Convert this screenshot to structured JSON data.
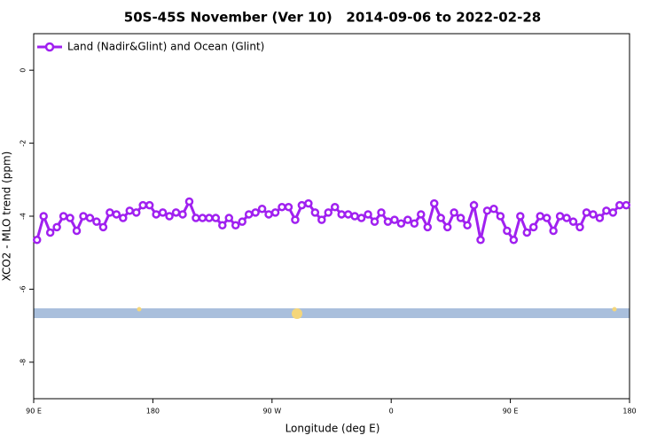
{
  "chart_data": {
    "type": "line",
    "title": "50S-45S November (Ver 10)   2014-09-06 to 2022-02-28",
    "x_label": "Longitude (deg E)",
    "y_label": "XCO2 - MLO trend (ppm)",
    "x": [
      92.5,
      97.5,
      102.5,
      107.5,
      112.5,
      117.5,
      122.5,
      127.5,
      132.5,
      137.5,
      142.5,
      147.5,
      152.5,
      157.5,
      162.5,
      167.5,
      172.5,
      177.5,
      182.5,
      187.5,
      192.5,
      197.5,
      202.5,
      207.5,
      212.5,
      217.5,
      222.5,
      227.5,
      232.5,
      237.5,
      242.5,
      247.5,
      252.5,
      257.5,
      262.5,
      267.5,
      272.5,
      277.5,
      282.5,
      287.5,
      292.5,
      297.5,
      302.5,
      307.5,
      312.5,
      317.5,
      322.5,
      327.5,
      332.5,
      337.5,
      342.5,
      347.5,
      352.5,
      357.5,
      362.5,
      367.5,
      372.5,
      377.5,
      382.5,
      387.5,
      392.5,
      397.5,
      402.5,
      407.5,
      412.5,
      417.5,
      422.5,
      427.5,
      432.5,
      437.5,
      442.5,
      447.5,
      452.5,
      457.5,
      462.5,
      467.5,
      472.5,
      477.5,
      482.5,
      487.5,
      492.5,
      497.5,
      502.5,
      507.5,
      512.5,
      517.5,
      522.5,
      527.5,
      532.5,
      537.5
    ],
    "series": [
      {
        "name": "Land (Nadir&Glint) and Ocean (Glint)",
        "color": "#a020f0",
        "values": [
          -4.65,
          -4.0,
          -4.45,
          -4.3,
          -4.0,
          -4.05,
          -4.4,
          -4.0,
          -4.05,
          -4.15,
          -4.3,
          -3.9,
          -3.95,
          -4.05,
          -3.85,
          -3.9,
          -3.7,
          -3.7,
          -3.95,
          -3.9,
          -4.0,
          -3.9,
          -3.95,
          -3.6,
          -4.05,
          -4.05,
          -4.05,
          -4.05,
          -4.25,
          -4.05,
          -4.25,
          -4.15,
          -3.95,
          -3.9,
          -3.8,
          -3.95,
          -3.9,
          -3.75,
          -3.75,
          -4.1,
          -3.7,
          -3.65,
          -3.9,
          -4.1,
          -3.9,
          -3.75,
          -3.95,
          -3.95,
          -4.0,
          -4.05,
          -3.95,
          -4.15,
          -3.9,
          -4.15,
          -4.1,
          -4.2,
          -4.1,
          -4.2,
          -3.95,
          -4.3,
          -3.65,
          -4.05,
          -4.3,
          -3.9,
          -4.05,
          -4.25,
          -3.7,
          -4.65,
          -3.85,
          -3.8,
          -4.0,
          -4.4,
          -4.65,
          -4.0,
          -4.45,
          -4.3,
          -4.0,
          -4.05,
          -4.4,
          -4.0,
          -4.05,
          -4.15,
          -4.3,
          -3.9,
          -3.95,
          -4.05,
          -3.85,
          -3.9,
          -3.7,
          -3.7
        ]
      }
    ],
    "xlim": [
      90,
      540
    ],
    "xticks": [
      {
        "value": 90,
        "label": "90 E"
      },
      180,
      {
        "value": 270,
        "label": "90 W"
      },
      {
        "value": 360,
        "label": "0"
      },
      {
        "value": 450,
        "label": "90 E"
      },
      {
        "value": 540,
        "label": "180"
      }
    ],
    "ylim": [
      -9,
      1
    ],
    "yticks": [
      0,
      -2,
      -4,
      -6,
      -8
    ],
    "legend": "top-left"
  }
}
